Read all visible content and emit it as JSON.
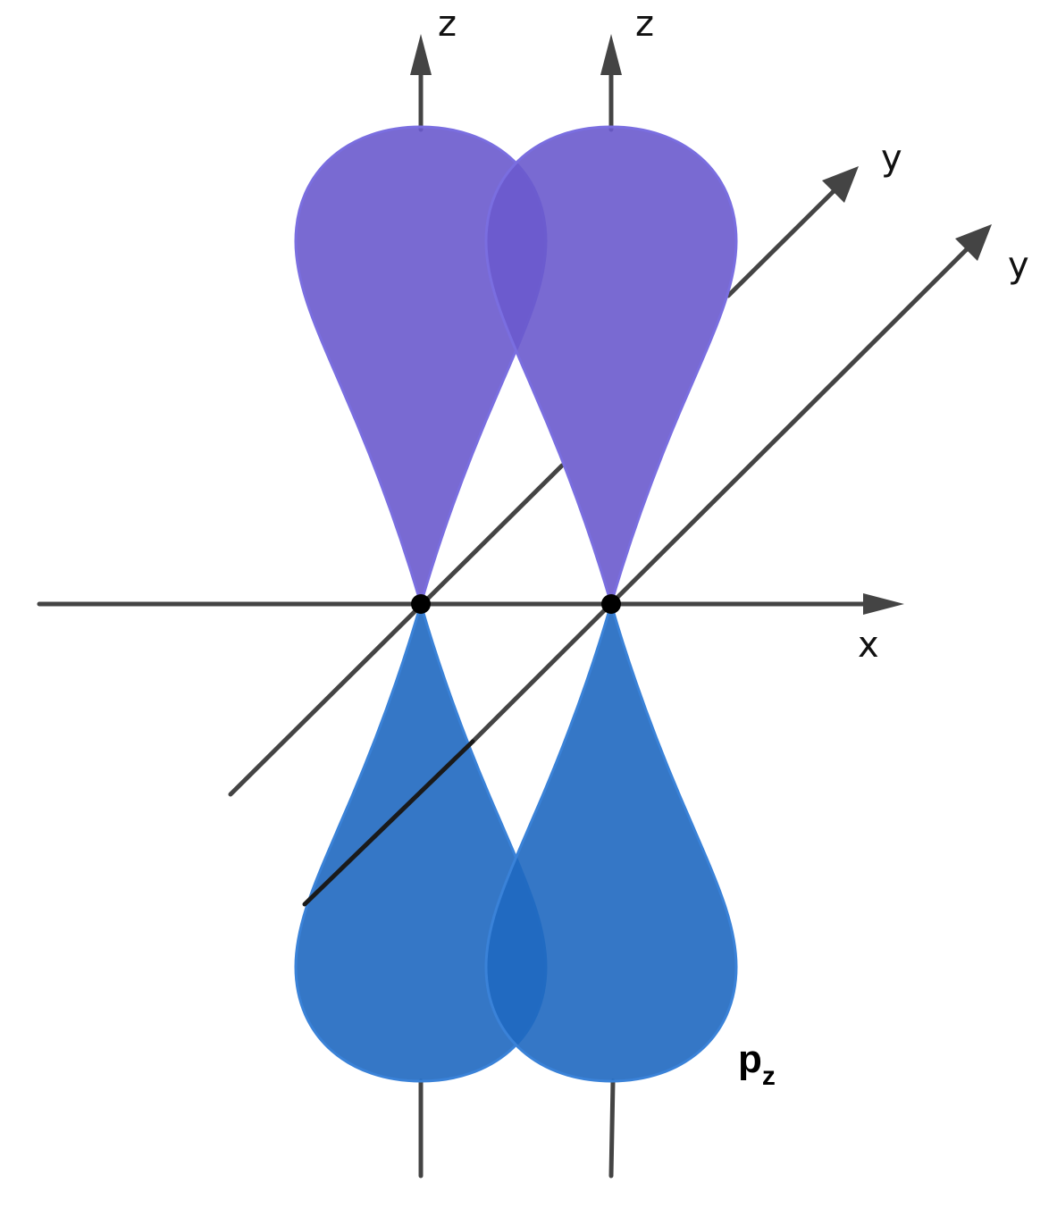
{
  "diagram": {
    "left_atom": {
      "z_label": "z",
      "y_label": "y"
    },
    "right_atom": {
      "z_label": "z",
      "y_label": "y"
    },
    "shared_axis": {
      "x_label": "x"
    },
    "orbital": {
      "symbol": "p",
      "subscript": "z"
    },
    "colors": {
      "upper_lobe": "#6a5acd",
      "upper_lobe_stroke": "#7a6ee0",
      "lower_lobe": "#1f68c0",
      "lower_lobe_stroke": "#3a82d8",
      "axis": "#444444",
      "nucleus": "#000000"
    }
  }
}
